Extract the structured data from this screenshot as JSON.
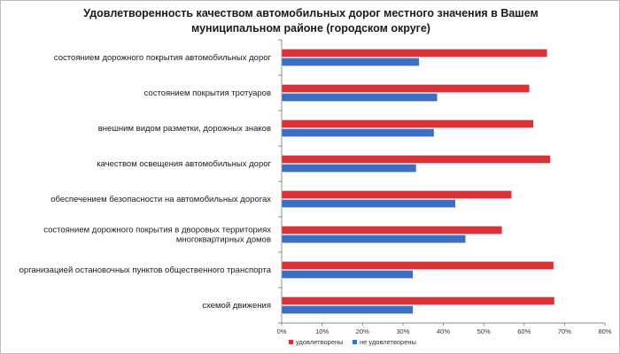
{
  "chart_data": {
    "type": "bar",
    "orientation": "horizontal",
    "title": "Удовлетворенность качеством автомобильных дорог местного значения в Вашем муниципальном районе (городском округе)",
    "categories": [
      [
        "состоянием дорожного покрытия автомобильных дорог"
      ],
      [
        "состоянием покрытия тротуаров"
      ],
      [
        "внешним видом разметки, дорожных знаков"
      ],
      [
        "качеством освещения автомобильных дорог"
      ],
      [
        "обеспечением безопасности на автомобильных дорогах"
      ],
      [
        "состоянием дорожного покрытия в дворовых территориях",
        "многоквартирных домов"
      ],
      [
        "организацией остановочных пунктов общественного транспорта"
      ],
      [
        "схемой движения"
      ]
    ],
    "series": [
      {
        "name": "удовлетворены",
        "color": "#d9333a",
        "values": [
          65.7,
          61.3,
          62.3,
          66.5,
          56.9,
          54.5,
          67.3,
          67.5
        ]
      },
      {
        "name": "не удовлетворены",
        "color": "#3a6fc4",
        "values": [
          34.0,
          38.5,
          37.7,
          33.3,
          43.0,
          45.5,
          32.5,
          32.5
        ]
      }
    ],
    "xlim": [
      0,
      80
    ],
    "xticks": [
      "0%",
      "10%",
      "20%",
      "30%",
      "40%",
      "50%",
      "60%",
      "70%",
      "80%"
    ],
    "grid": false,
    "legend_position": "bottom"
  }
}
